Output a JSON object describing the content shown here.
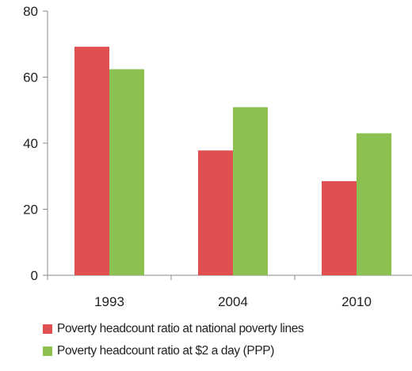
{
  "chart_data": {
    "type": "bar",
    "categories": [
      "1993",
      "2004",
      "2010"
    ],
    "series": [
      {
        "name": "Poverty headcount ratio at national poverty lines",
        "values": [
          69.2,
          37.8,
          28.5
        ],
        "color": "#e05050"
      },
      {
        "name": "Poverty headcount ratio at $2 a day (PPP)",
        "values": [
          62.4,
          50.9,
          43.0
        ],
        "color": "#8cc152"
      }
    ],
    "ylim": [
      0,
      80
    ],
    "yticks": [
      "0",
      "20",
      "40",
      "60",
      "80"
    ],
    "grid": false,
    "legend_position": "bottom-left"
  }
}
